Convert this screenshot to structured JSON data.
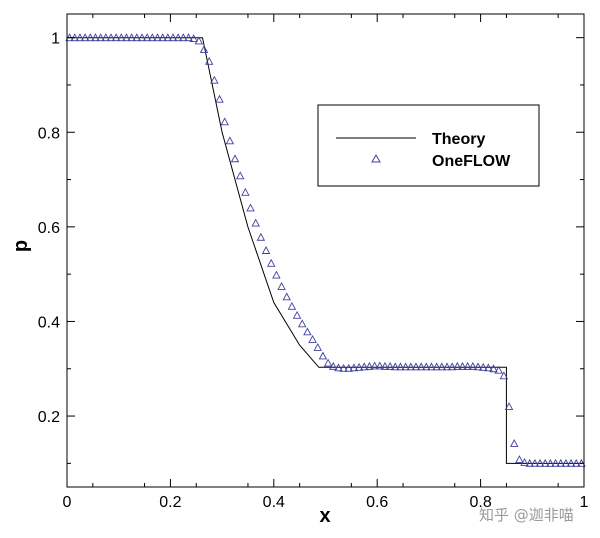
{
  "chart_data": {
    "type": "line",
    "xlabel": "x",
    "ylabel": "p",
    "xlim": [
      0,
      1
    ],
    "ylim": [
      0.05,
      1.05
    ],
    "xticks": [
      "0",
      "0.2",
      "0.4",
      "0.6",
      "0.8",
      "1"
    ],
    "xtick_values": [
      0,
      0.2,
      0.4,
      0.6,
      0.8,
      1
    ],
    "yticks": [
      "0.2",
      "0.4",
      "0.6",
      "0.8",
      "1"
    ],
    "ytick_values": [
      0.2,
      0.4,
      0.6,
      0.8,
      1
    ],
    "legend_position": "top-right",
    "grid": false,
    "series": [
      {
        "name": "Theory",
        "style": "line",
        "color": "#000000",
        "x": [
          0,
          0.262,
          0.3,
          0.35,
          0.4,
          0.45,
          0.487,
          0.85,
          0.85,
          1
        ],
        "y": [
          1.0,
          1.0,
          0.8,
          0.6,
          0.44,
          0.35,
          0.303,
          0.303,
          0.1,
          0.1
        ]
      },
      {
        "name": "OneFLOW",
        "style": "marker",
        "marker": "triangle",
        "color": "#4040a0",
        "x": [
          0.005,
          0.015,
          0.025,
          0.035,
          0.045,
          0.055,
          0.065,
          0.075,
          0.085,
          0.095,
          0.105,
          0.115,
          0.125,
          0.135,
          0.145,
          0.155,
          0.165,
          0.175,
          0.185,
          0.195,
          0.205,
          0.215,
          0.225,
          0.235,
          0.245,
          0.255,
          0.265,
          0.275,
          0.285,
          0.295,
          0.305,
          0.315,
          0.325,
          0.335,
          0.345,
          0.355,
          0.365,
          0.375,
          0.385,
          0.395,
          0.405,
          0.415,
          0.425,
          0.435,
          0.445,
          0.455,
          0.465,
          0.475,
          0.485,
          0.495,
          0.505,
          0.515,
          0.525,
          0.535,
          0.545,
          0.555,
          0.565,
          0.575,
          0.585,
          0.595,
          0.605,
          0.615,
          0.625,
          0.635,
          0.645,
          0.655,
          0.665,
          0.675,
          0.685,
          0.695,
          0.705,
          0.715,
          0.725,
          0.735,
          0.745,
          0.755,
          0.765,
          0.775,
          0.785,
          0.795,
          0.805,
          0.815,
          0.825,
          0.835,
          0.845,
          0.855,
          0.865,
          0.875,
          0.885,
          0.895,
          0.905,
          0.915,
          0.925,
          0.935,
          0.945,
          0.955,
          0.965,
          0.975,
          0.985,
          0.995
        ],
        "y": [
          1.0,
          1.0,
          1.0,
          1.0,
          1.0,
          1.0,
          1.0,
          1.0,
          1.0,
          1.0,
          1.0,
          1.0,
          1.0,
          1.0,
          1.0,
          1.0,
          1.0,
          1.0,
          1.0,
          1.0,
          1.0,
          1.0,
          1.0,
          1.0,
          0.998,
          0.993,
          0.975,
          0.95,
          0.91,
          0.87,
          0.822,
          0.782,
          0.744,
          0.708,
          0.673,
          0.64,
          0.608,
          0.578,
          0.55,
          0.523,
          0.498,
          0.474,
          0.452,
          0.432,
          0.413,
          0.395,
          0.378,
          0.362,
          0.345,
          0.327,
          0.312,
          0.305,
          0.302,
          0.301,
          0.301,
          0.302,
          0.303,
          0.304,
          0.305,
          0.306,
          0.306,
          0.305,
          0.305,
          0.304,
          0.304,
          0.304,
          0.304,
          0.304,
          0.304,
          0.304,
          0.304,
          0.304,
          0.304,
          0.304,
          0.304,
          0.305,
          0.305,
          0.305,
          0.305,
          0.304,
          0.303,
          0.302,
          0.3,
          0.297,
          0.285,
          0.22,
          0.142,
          0.108,
          0.102,
          0.1,
          0.1,
          0.1,
          0.1,
          0.1,
          0.1,
          0.1,
          0.1,
          0.1,
          0.1,
          0.1
        ]
      }
    ]
  },
  "watermark": "知乎 @迦非喵"
}
